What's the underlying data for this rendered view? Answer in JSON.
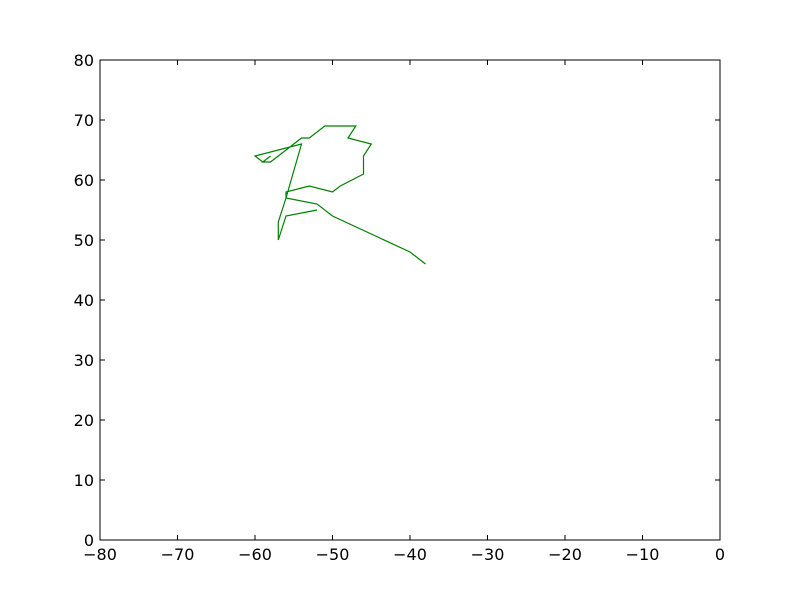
{
  "chart_data": {
    "type": "line",
    "title": "",
    "xlabel": "",
    "ylabel": "",
    "xlim": [
      -80,
      0
    ],
    "ylim": [
      0,
      80
    ],
    "xticks": [
      -80,
      -70,
      -60,
      -50,
      -40,
      -30,
      -20,
      -10,
      0
    ],
    "yticks": [
      0,
      10,
      20,
      30,
      40,
      50,
      60,
      70,
      80
    ],
    "xtick_labels": [
      "−80",
      "−70",
      "−60",
      "−50",
      "−40",
      "−30",
      "−20",
      "−10",
      "0"
    ],
    "ytick_labels": [
      "0",
      "10",
      "20",
      "30",
      "40",
      "50",
      "60",
      "70",
      "80"
    ],
    "grid": false,
    "legend": "none",
    "series": [
      {
        "color": "#008000",
        "points": [
          [
            -52,
            55
          ],
          [
            -56,
            54
          ],
          [
            -57,
            50
          ],
          [
            -57,
            53
          ],
          [
            -56,
            57
          ],
          [
            -54,
            66
          ],
          [
            -60,
            64
          ],
          [
            -59,
            63
          ],
          [
            -58,
            64
          ],
          [
            -59,
            63
          ],
          [
            -58,
            63
          ],
          [
            -55,
            66
          ],
          [
            -54,
            67
          ],
          [
            -53,
            67
          ],
          [
            -51,
            69
          ],
          [
            -47,
            69
          ],
          [
            -48,
            67
          ],
          [
            -45,
            66
          ],
          [
            -46,
            64
          ],
          [
            -46,
            61
          ],
          [
            -49,
            59
          ],
          [
            -50,
            58
          ],
          [
            -53,
            59
          ],
          [
            -56,
            58
          ],
          [
            -56,
            57
          ],
          [
            -52,
            56
          ],
          [
            -50,
            54
          ],
          [
            -40,
            48
          ],
          [
            -38,
            46
          ]
        ]
      }
    ]
  }
}
